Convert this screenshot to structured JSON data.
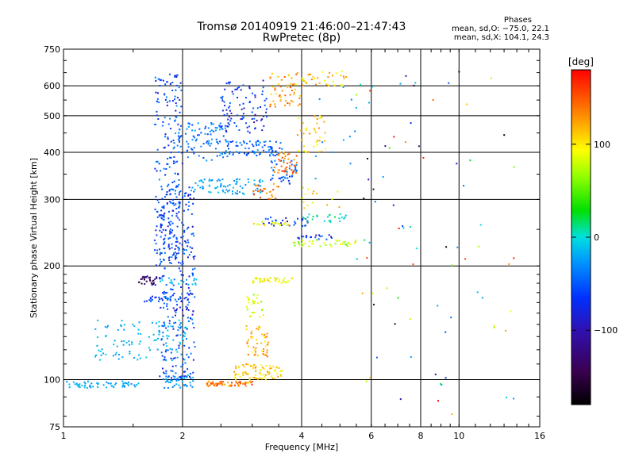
{
  "chart_data": {
    "type": "scatter",
    "title": "Tromsø 20140919 21:46:00–21:47:43",
    "subtitle": "RwPretec (8p)",
    "xlabel": "Frequency [MHz]",
    "ylabel": "Stationary phase Virtual Height [km]",
    "x_scale": "log",
    "y_scale": "log",
    "xlim": [
      1,
      16
    ],
    "ylim": [
      75,
      750
    ],
    "x_ticks": [
      "1",
      "2",
      "4",
      "6",
      "8",
      "10",
      "16"
    ],
    "y_ticks": [
      "75",
      "100",
      "200",
      "300",
      "400",
      "500",
      "600",
      "750"
    ],
    "grid": true,
    "phase_stats": {
      "heading": "Phases",
      "line_o": "mean, sd,O: −75.0, 22.1",
      "line_x": "mean, sd,X: 104.1, 24.3"
    },
    "colorbar": {
      "label": "[deg]",
      "range": [
        -180,
        180
      ],
      "ticks": [
        "100",
        "0",
        "−100"
      ]
    },
    "clusters": [
      {
        "f": [
          0.98,
          1.55
        ],
        "h": [
          95,
          99
        ],
        "phase": -50,
        "count": 60
      },
      {
        "f": [
          1.2,
          2.05
        ],
        "h": [
          112,
          145
        ],
        "phase": -40,
        "count": 110
      },
      {
        "f": [
          1.55,
          1.72
        ],
        "h": [
          178,
          188
        ],
        "phase": -150,
        "count": 30
      },
      {
        "f": [
          1.72,
          2.2
        ],
        "h": [
          178,
          186
        ],
        "phase": -40,
        "count": 20
      },
      {
        "f": [
          1.6,
          1.9
        ],
        "h": [
          161,
          167
        ],
        "phase": -100,
        "count": 25
      },
      {
        "f": [
          1.8,
          2.15
        ],
        "h": [
          95,
          103
        ],
        "phase": -60,
        "count": 40
      },
      {
        "f": [
          1.75,
          2.15
        ],
        "h": [
          100,
          330
        ],
        "phase": -100,
        "count": 300
      },
      {
        "f": [
          1.7,
          2.0
        ],
        "h": [
          200,
          650
        ],
        "phase": -100,
        "count": 200
      },
      {
        "f": [
          1.9,
          2.6
        ],
        "h": [
          380,
          480
        ],
        "phase": -80,
        "count": 100
      },
      {
        "f": [
          2.1,
          3.2
        ],
        "h": [
          310,
          340
        ],
        "phase": -50,
        "count": 80
      },
      {
        "f": [
          2.6,
          3.6
        ],
        "h": [
          390,
          430
        ],
        "phase": -90,
        "count": 80
      },
      {
        "f": [
          2.5,
          3.3
        ],
        "h": [
          450,
          620
        ],
        "phase": -110,
        "count": 90
      },
      {
        "f": [
          3.3,
          3.9
        ],
        "h": [
          330,
          380
        ],
        "phase": -90,
        "count": 40
      },
      {
        "f": [
          3.0,
          3.5
        ],
        "h": [
          300,
          330
        ],
        "phase": 140,
        "count": 25
      },
      {
        "f": [
          3.4,
          3.9
        ],
        "h": [
          350,
          400
        ],
        "phase": 140,
        "count": 40
      },
      {
        "f": [
          3.3,
          4.0
        ],
        "h": [
          520,
          650
        ],
        "phase": 130,
        "count": 50
      },
      {
        "f": [
          3.9,
          4.6
        ],
        "h": [
          400,
          500
        ],
        "phase": 110,
        "count": 40
      },
      {
        "f": [
          3.7,
          5.2
        ],
        "h": [
          600,
          660
        ],
        "phase": 110,
        "count": 40
      },
      {
        "f": [
          2.3,
          3.0
        ],
        "h": [
          96,
          99
        ],
        "phase": 140,
        "count": 60
      },
      {
        "f": [
          2.7,
          3.6
        ],
        "h": [
          100,
          110
        ],
        "phase": 110,
        "count": 80
      },
      {
        "f": [
          2.9,
          3.3
        ],
        "h": [
          115,
          140
        ],
        "phase": 120,
        "count": 50
      },
      {
        "f": [
          2.9,
          3.2
        ],
        "h": [
          145,
          170
        ],
        "phase": 80,
        "count": 25
      },
      {
        "f": [
          3.0,
          3.8
        ],
        "h": [
          180,
          186
        ],
        "phase": 90,
        "count": 40
      },
      {
        "f": [
          3.2,
          4.2
        ],
        "h": [
          255,
          270
        ],
        "phase": -110,
        "count": 30
      },
      {
        "f": [
          3.0,
          3.9
        ],
        "h": [
          255,
          262
        ],
        "phase": 90,
        "count": 20
      },
      {
        "f": [
          3.8,
          5.5
        ],
        "h": [
          225,
          235
        ],
        "phase": 75,
        "count": 40
      },
      {
        "f": [
          3.9,
          4.8
        ],
        "h": [
          235,
          242
        ],
        "phase": -110,
        "count": 20
      },
      {
        "f": [
          4.0,
          5.2
        ],
        "h": [
          260,
          275
        ],
        "phase": 0,
        "count": 25
      },
      {
        "f": [
          4.0,
          5.0
        ],
        "h": [
          280,
          340
        ],
        "phase": 100,
        "count": 15
      },
      {
        "f": [
          4.3,
          5.5
        ],
        "h": [
          340,
          600
        ],
        "phase": -60,
        "count": 12
      },
      {
        "f": [
          5.5,
          14.0
        ],
        "h": [
          80,
          660
        ],
        "phase": 0,
        "count": 80
      }
    ]
  }
}
